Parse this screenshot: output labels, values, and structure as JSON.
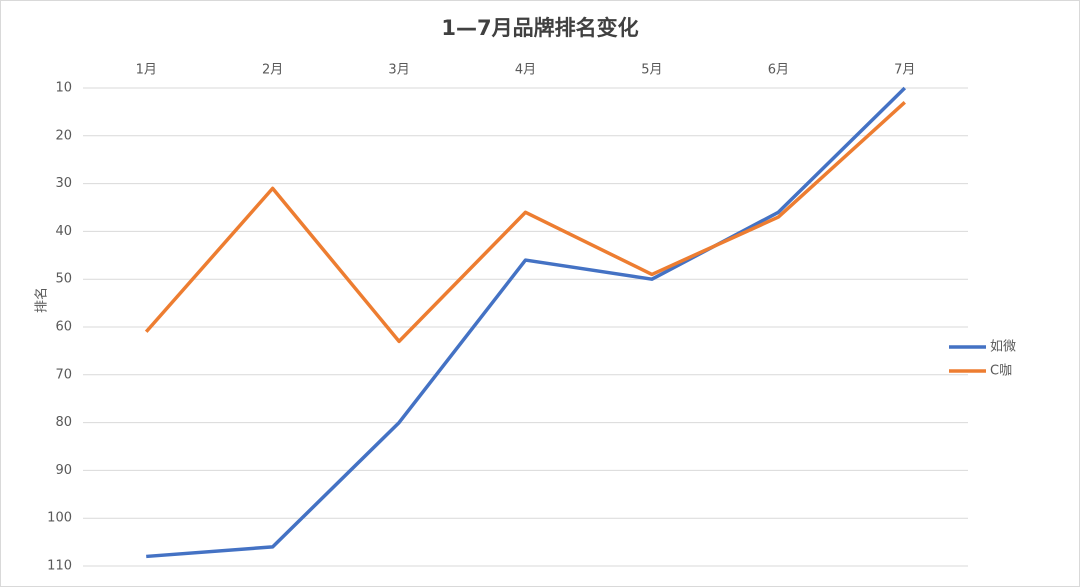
{
  "chart_data": {
    "type": "line",
    "title": "1—7月品牌排名变化",
    "y_label": "排名",
    "categories": [
      "1月",
      "2月",
      "3月",
      "4月",
      "5月",
      "6月",
      "7月"
    ],
    "series": [
      {
        "name": "如微",
        "color": "#4472c4",
        "values": [
          108,
          106,
          80,
          46,
          50,
          36,
          10
        ]
      },
      {
        "name": "C咖",
        "color": "#ed7d31",
        "values": [
          61,
          31,
          63,
          36,
          49,
          37,
          13
        ]
      }
    ],
    "ylim": [
      10,
      110
    ],
    "yticks": [
      10,
      20,
      30,
      40,
      50,
      60,
      70,
      80,
      90,
      100,
      110
    ],
    "y_inverted": true,
    "x_axis_position": "top",
    "grid": true,
    "legend": "right"
  }
}
